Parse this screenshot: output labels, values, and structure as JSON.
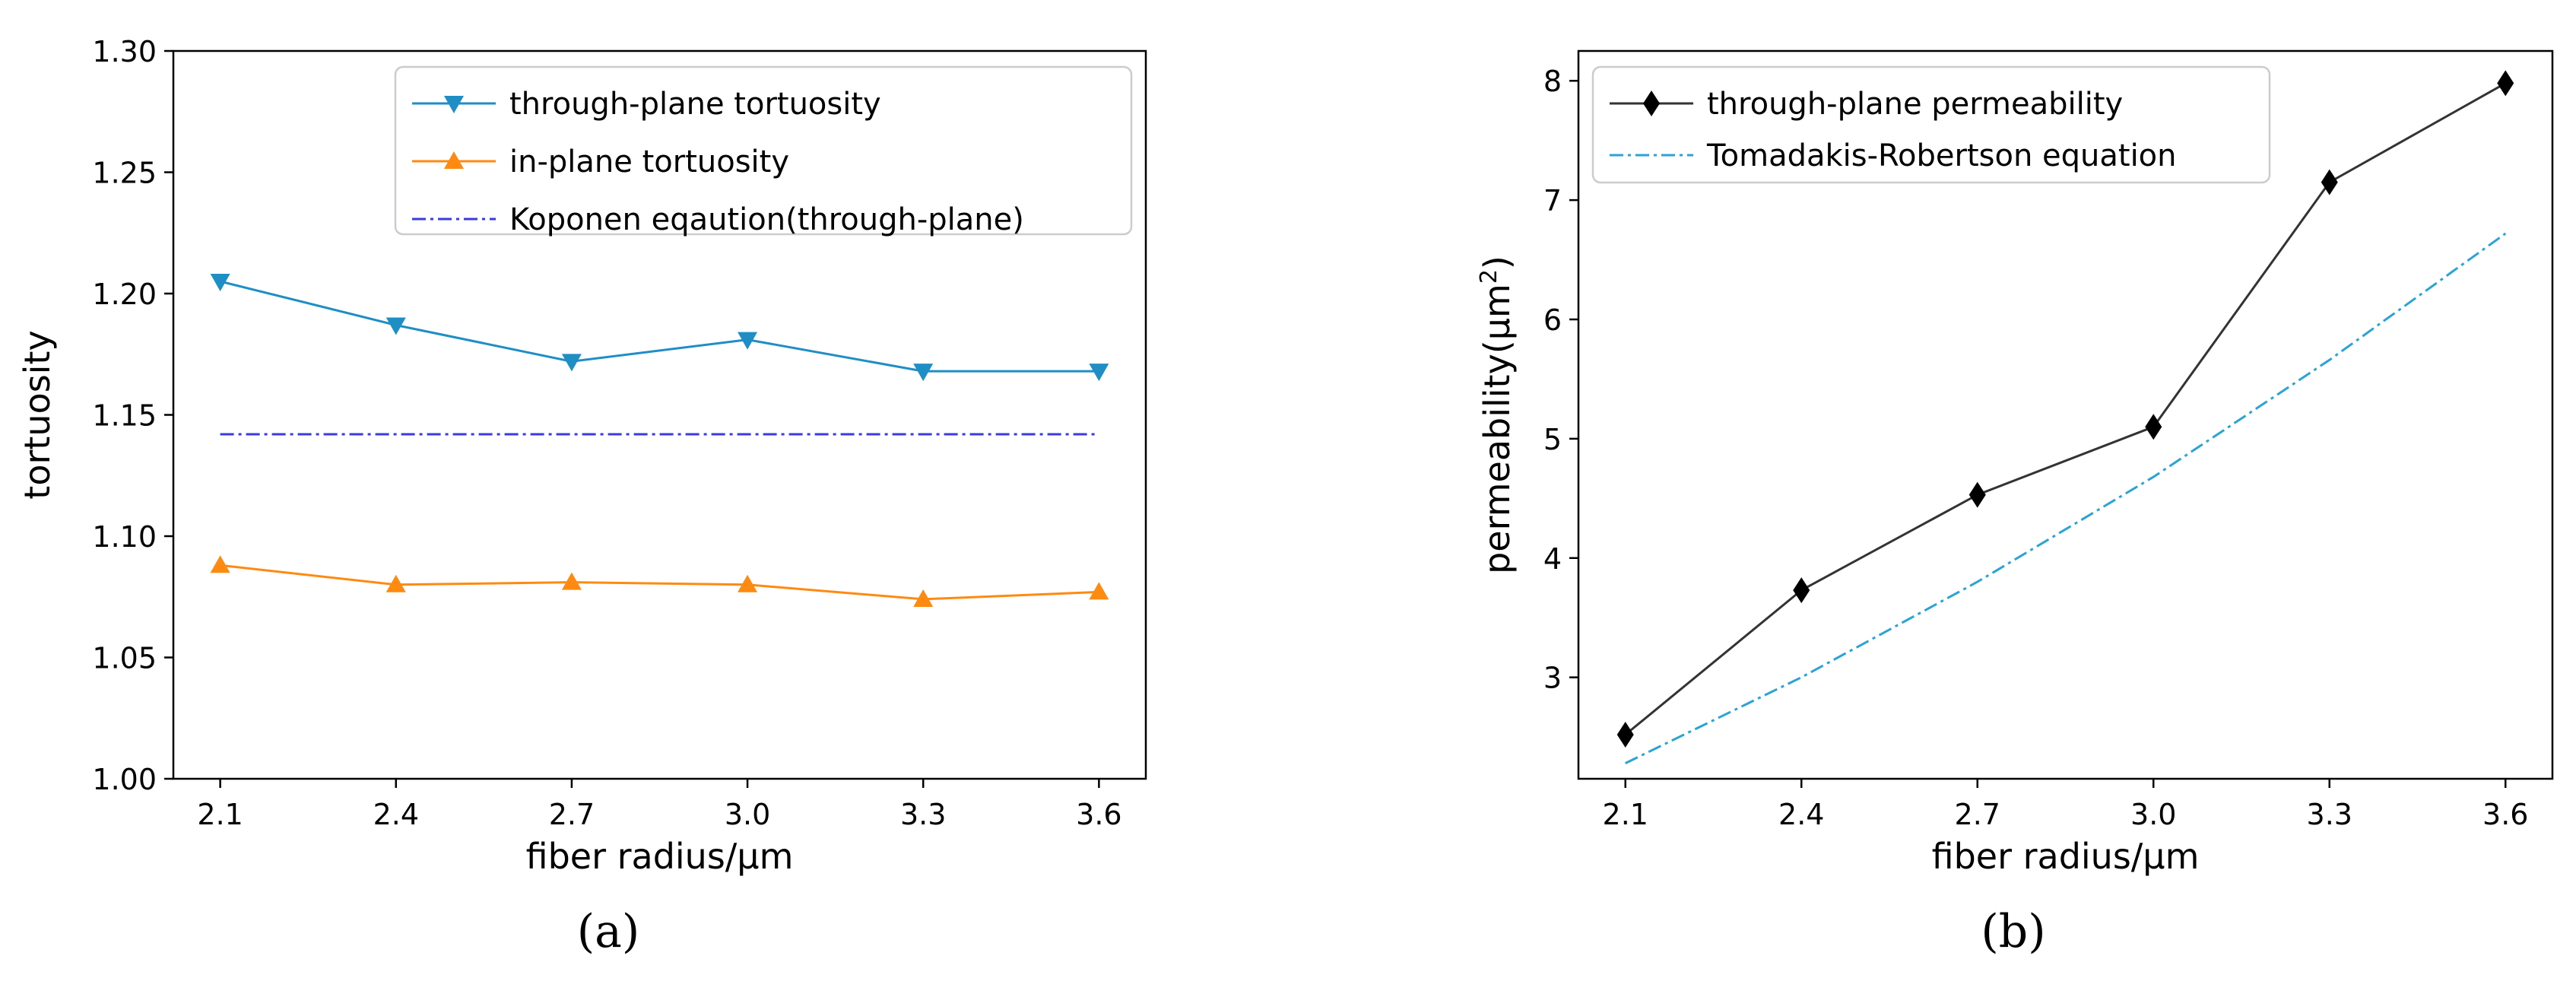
{
  "chart_data": [
    {
      "type": "line",
      "panel_label": "(a)",
      "title": "",
      "xlabel": "fiber radius/μm",
      "ylabel": "tortuosity",
      "x": [
        2.1,
        2.4,
        2.7,
        3.0,
        3.3,
        3.6
      ],
      "xticks": [
        "2.1",
        "2.4",
        "2.7",
        "3.0",
        "3.3",
        "3.6"
      ],
      "xlim": [
        2.02,
        3.68
      ],
      "ylim": [
        1.0,
        1.3
      ],
      "yticks": [
        1.0,
        1.05,
        1.1,
        1.15,
        1.2,
        1.25,
        1.3
      ],
      "ytick_labels": [
        "1.00",
        "1.05",
        "1.10",
        "1.15",
        "1.20",
        "1.25",
        "1.30"
      ],
      "legend_position": "top-right",
      "series": [
        {
          "name": "through-plane tortuosity",
          "values": [
            1.205,
            1.187,
            1.172,
            1.181,
            1.168,
            1.168
          ],
          "color": "#1f8ec4",
          "marker": "triangle-down",
          "style": "solid"
        },
        {
          "name": "in-plane tortuosity",
          "values": [
            1.088,
            1.08,
            1.081,
            1.08,
            1.074,
            1.077
          ],
          "color": "#ff8a12",
          "marker": "triangle-up",
          "style": "solid"
        },
        {
          "name": "Koponen eqaution(through-plane)",
          "values": [
            1.142,
            1.142,
            1.142,
            1.142,
            1.142,
            1.142
          ],
          "color": "#3a3ae0",
          "marker": "none",
          "style": "dashdot"
        }
      ]
    },
    {
      "type": "line",
      "panel_label": "(b)",
      "title": "",
      "xlabel": "fiber radius/μm",
      "ylabel": "permeability(μm²)",
      "ylabel_main": "permeability(μm",
      "ylabel_sup": "2",
      "ylabel_end": ")",
      "x": [
        2.1,
        2.4,
        2.7,
        3.0,
        3.3,
        3.6
      ],
      "xticks": [
        "2.1",
        "2.4",
        "2.7",
        "3.0",
        "3.3",
        "3.6"
      ],
      "xlim": [
        2.02,
        3.68
      ],
      "ylim": [
        2.15,
        8.25
      ],
      "yticks": [
        3,
        4,
        5,
        6,
        7,
        8
      ],
      "ytick_labels": [
        "3",
        "4",
        "5",
        "6",
        "7",
        "8"
      ],
      "legend_position": "top-left",
      "series": [
        {
          "name": "through-plane permeability",
          "values": [
            2.52,
            3.73,
            4.53,
            5.1,
            7.15,
            7.98
          ],
          "color": "#333333",
          "marker": "diamond",
          "style": "solid"
        },
        {
          "name": "Tomadakis-Robertson equation",
          "values": [
            2.28,
            3.0,
            3.8,
            4.68,
            5.66,
            6.72
          ],
          "color": "#2aa3d6",
          "marker": "none",
          "style": "dashdot",
          "smooth": true
        }
      ]
    }
  ]
}
